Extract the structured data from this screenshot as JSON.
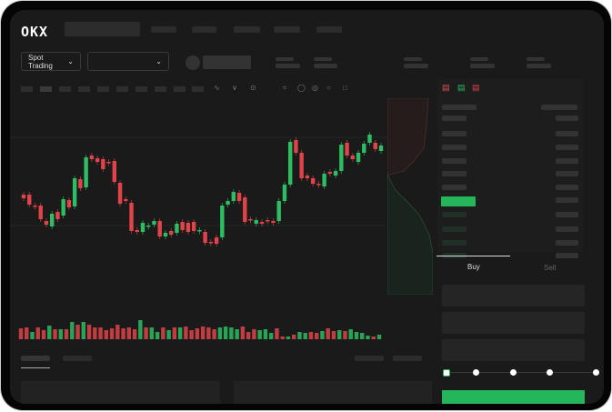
{
  "header": {
    "logo": "OKX"
  },
  "controls": {
    "market_select": "Spot Trading",
    "pair_select": ""
  },
  "toolbar": {
    "icons": [
      "indicator-icon",
      "chart-type-icon",
      "timeframe-icon",
      "line-tool-icon",
      "brush-icon",
      "measure-icon",
      "settings-icon",
      "fullscreen-icon"
    ]
  },
  "order_form": {
    "buy_label": "Buy",
    "sell_label": "Sell",
    "slider_level": 0
  },
  "colors": {
    "up": "#2dbd63",
    "down": "#e0444a",
    "accent": "#25b65c"
  },
  "chart_data": {
    "type": "candlestick",
    "candles": [
      {
        "o": 97,
        "c": 93
      },
      {
        "o": 97,
        "c": 86
      },
      {
        "o": 85,
        "c": 84
      },
      {
        "o": 85,
        "c": 70
      },
      {
        "o": 68,
        "c": 64
      },
      {
        "o": 62,
        "c": 76
      },
      {
        "o": 78,
        "c": 70
      },
      {
        "o": 74,
        "c": 92
      },
      {
        "o": 91,
        "c": 83
      },
      {
        "o": 84,
        "c": 115
      },
      {
        "o": 114,
        "c": 104
      },
      {
        "o": 105,
        "c": 138
      },
      {
        "o": 140,
        "c": 136
      },
      {
        "o": 137,
        "c": 133
      },
      {
        "o": 136,
        "c": 125
      },
      {
        "o": 133,
        "c": 132
      },
      {
        "o": 134,
        "c": 111
      },
      {
        "o": 110,
        "c": 87
      },
      {
        "o": 92,
        "c": 90
      },
      {
        "o": 88,
        "c": 57
      },
      {
        "o": 58,
        "c": 56
      },
      {
        "o": 56,
        "c": 66
      },
      {
        "o": 62,
        "c": 63
      },
      {
        "o": 64,
        "c": 68
      },
      {
        "o": 68,
        "c": 51
      },
      {
        "o": 51,
        "c": 55
      },
      {
        "o": 57,
        "c": 53
      },
      {
        "o": 55,
        "c": 65
      },
      {
        "o": 67,
        "c": 58
      },
      {
        "o": 66,
        "c": 56
      },
      {
        "o": 67,
        "c": 57
      },
      {
        "o": 58,
        "c": 58
      },
      {
        "o": 56,
        "c": 44
      },
      {
        "o": 45,
        "c": 44
      },
      {
        "o": 50,
        "c": 43
      },
      {
        "o": 50,
        "c": 85
      },
      {
        "o": 86,
        "c": 90
      },
      {
        "o": 90,
        "c": 100
      },
      {
        "o": 99,
        "c": 90
      },
      {
        "o": 94,
        "c": 67
      },
      {
        "o": 70,
        "c": 69
      },
      {
        "o": 65,
        "c": 69
      },
      {
        "o": 67,
        "c": 65
      },
      {
        "o": 69,
        "c": 68
      },
      {
        "o": 68,
        "c": 66
      },
      {
        "o": 68,
        "c": 90
      },
      {
        "o": 90,
        "c": 108
      },
      {
        "o": 108,
        "c": 155
      },
      {
        "o": 157,
        "c": 143
      },
      {
        "o": 143,
        "c": 115
      },
      {
        "o": 118,
        "c": 115
      },
      {
        "o": 115,
        "c": 109
      },
      {
        "o": 109,
        "c": 108
      },
      {
        "o": 106,
        "c": 120
      },
      {
        "o": 122,
        "c": 120
      },
      {
        "o": 118,
        "c": 123
      },
      {
        "o": 123,
        "c": 152
      },
      {
        "o": 154,
        "c": 140
      },
      {
        "o": 140,
        "c": 136
      },
      {
        "o": 133,
        "c": 143
      },
      {
        "o": 143,
        "c": 153
      },
      {
        "o": 154,
        "c": 163
      },
      {
        "o": 154,
        "c": 147
      },
      {
        "o": 145,
        "c": 151
      }
    ],
    "volume": [
      [
        12,
        "down"
      ],
      [
        13,
        "down"
      ],
      [
        8,
        "up"
      ],
      [
        13,
        "down"
      ],
      [
        10,
        "down"
      ],
      [
        15,
        "up"
      ],
      [
        11,
        "down"
      ],
      [
        11,
        "up"
      ],
      [
        11,
        "down"
      ],
      [
        19,
        "up"
      ],
      [
        16,
        "down"
      ],
      [
        19,
        "up"
      ],
      [
        16,
        "down"
      ],
      [
        13,
        "down"
      ],
      [
        13,
        "down"
      ],
      [
        10,
        "down"
      ],
      [
        12,
        "down"
      ],
      [
        16,
        "down"
      ],
      [
        12,
        "down"
      ],
      [
        13,
        "down"
      ],
      [
        11,
        "down"
      ],
      [
        21,
        "up"
      ],
      [
        13,
        "down"
      ],
      [
        13,
        "up"
      ],
      [
        8,
        "up"
      ],
      [
        13,
        "down"
      ],
      [
        10,
        "up"
      ],
      [
        13,
        "down"
      ],
      [
        13,
        "up"
      ],
      [
        14,
        "down"
      ],
      [
        10,
        "down"
      ],
      [
        12,
        "down"
      ],
      [
        14,
        "down"
      ],
      [
        13,
        "down"
      ],
      [
        11,
        "down"
      ],
      [
        13,
        "up"
      ],
      [
        14,
        "up"
      ],
      [
        13,
        "up"
      ],
      [
        11,
        "up"
      ],
      [
        14,
        "down"
      ],
      [
        8,
        "down"
      ],
      [
        11,
        "down"
      ],
      [
        10,
        "up"
      ],
      [
        11,
        "up"
      ],
      [
        7,
        "up"
      ],
      [
        12,
        "down"
      ],
      [
        3,
        "down"
      ],
      [
        3,
        "up"
      ],
      [
        5,
        "down"
      ],
      [
        8,
        "up"
      ],
      [
        7,
        "up"
      ],
      [
        8,
        "down"
      ],
      [
        7,
        "down"
      ],
      [
        9,
        "up"
      ],
      [
        12,
        "down"
      ],
      [
        9,
        "down"
      ],
      [
        10,
        "up"
      ],
      [
        9,
        "down"
      ],
      [
        11,
        "up"
      ],
      [
        8,
        "up"
      ],
      [
        7,
        "up"
      ],
      [
        4,
        "up"
      ],
      [
        3,
        "down"
      ],
      [
        5,
        "up"
      ]
    ],
    "grid": true
  }
}
